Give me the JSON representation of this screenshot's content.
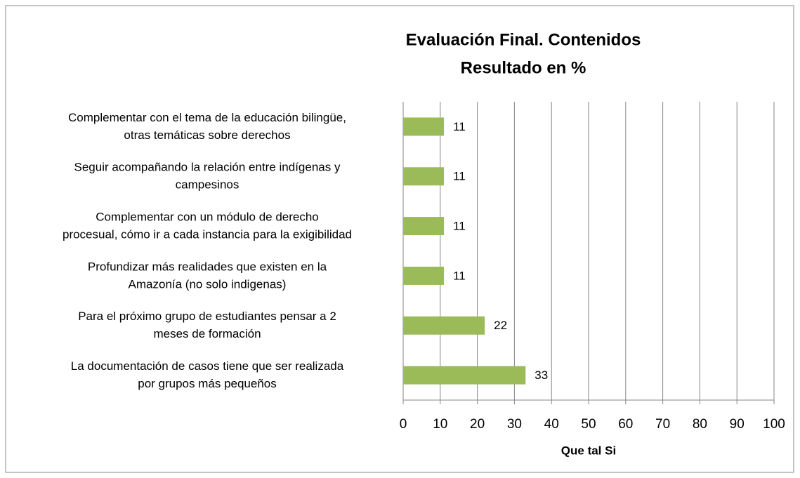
{
  "chart_data": {
    "type": "hbar",
    "title": [
      "Evaluación Final. Contenidos",
      "Resultado en %"
    ],
    "categories": [
      [
        "Complementar con el tema de la educación bilingüe,",
        "otras temáticas sobre derechos"
      ],
      [
        "Seguir acompañando la relación entre indígenas y",
        "campesinos"
      ],
      [
        "Complementar con un módulo de derecho",
        "procesual, cómo ir a cada instancia para la exigibilidad"
      ],
      [
        "Profundizar más realidades que existen en la",
        "Amazonía (no solo indigenas)"
      ],
      [
        "Para el próximo grupo de estudiantes pensar a 2",
        "meses de formación"
      ],
      [
        "La documentación de casos tiene que ser realizada",
        "por grupos más pequeños"
      ]
    ],
    "values": [
      11,
      11,
      11,
      11,
      22,
      33
    ],
    "color": "#9bbb59",
    "xlabel": "Que tal Si",
    "xlim": [
      0,
      100
    ],
    "xticks": [
      0,
      10,
      20,
      30,
      40,
      50,
      60,
      70,
      80,
      90,
      100
    ],
    "grid": true
  }
}
